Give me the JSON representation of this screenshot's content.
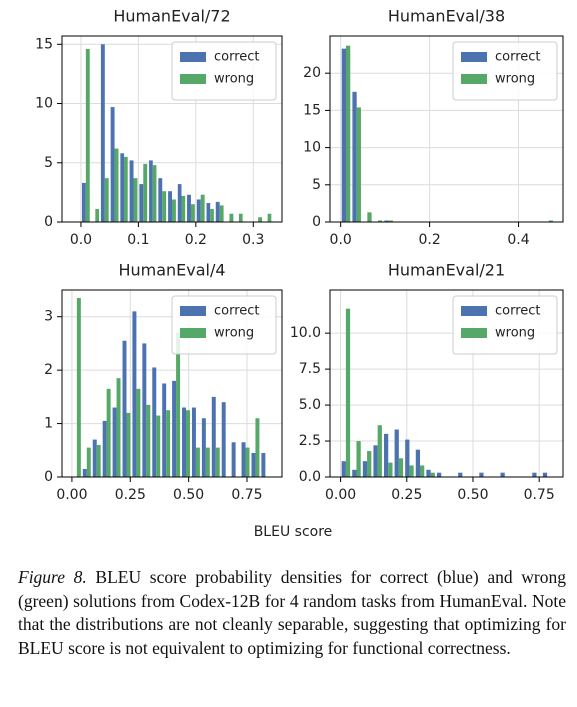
{
  "chart_data": [
    {
      "type": "histogram",
      "title": "HumanEval/72",
      "bins": [
        0,
        0.017,
        0.033,
        0.05,
        0.067,
        0.083,
        0.1,
        0.117,
        0.133,
        0.15,
        0.167,
        0.183,
        0.2,
        0.217,
        0.233,
        0.25,
        0.267,
        0.283,
        0.3,
        0.317,
        0.333
      ],
      "series": [
        {
          "name": "correct",
          "color": "#4c72b0",
          "values": [
            3.3,
            0,
            15,
            9.7,
            5.8,
            5.2,
            3.2,
            5.2,
            3.7,
            2.6,
            3.2,
            2.3,
            1.9,
            1.6,
            1.7,
            0,
            0,
            0,
            0,
            0
          ]
        },
        {
          "name": "wrong",
          "color": "#55a868",
          "values": [
            14.6,
            1.1,
            3.7,
            6.2,
            5.5,
            3.7,
            4.9,
            4.8,
            2.6,
            1.9,
            2.2,
            1.5,
            2.3,
            1.1,
            1.4,
            0.7,
            0.7,
            0,
            0.4,
            0.7
          ]
        }
      ],
      "xlim": [
        -0.033,
        0.35
      ],
      "xticks": [
        {
          "value": 0,
          "label": "0.0"
        },
        0.1,
        0.2,
        0.3
      ],
      "ylim": [
        0,
        15.7
      ],
      "yticks": [
        0,
        5,
        10,
        15
      ],
      "grid": true,
      "legend": "upper right"
    },
    {
      "type": "histogram",
      "title": "HumanEval/38",
      "bins": [
        0,
        0.024,
        0.048,
        0.072,
        0.096,
        0.12,
        0.144,
        0.168,
        0.192,
        0.216,
        0.24,
        0.264,
        0.288,
        0.312,
        0.336,
        0.36,
        0.384,
        0.408,
        0.432,
        0.456,
        0.48
      ],
      "series": [
        {
          "name": "correct",
          "color": "#4c72b0",
          "values": [
            23.3,
            17.5,
            0,
            0,
            0.2,
            0,
            0,
            0,
            0,
            0,
            0,
            0,
            0,
            0,
            0,
            0,
            0,
            0,
            0,
            0
          ]
        },
        {
          "name": "wrong",
          "color": "#55a868",
          "values": [
            23.7,
            15.4,
            1.3,
            0.2,
            0.2,
            0,
            0,
            0,
            0,
            0,
            0,
            0,
            0,
            0,
            0,
            0,
            0,
            0,
            0,
            0.2
          ]
        }
      ],
      "xlim": [
        -0.024,
        0.5
      ],
      "xticks": [
        {
          "value": 0,
          "label": "0.0"
        },
        0.2,
        0.4
      ],
      "ylim": [
        0,
        25
      ],
      "yticks": [
        0,
        5,
        10,
        15,
        20
      ],
      "grid": true,
      "legend": "upper right"
    },
    {
      "type": "histogram",
      "title": "HumanEval/4",
      "bins": [
        0,
        0.0425,
        0.085,
        0.1275,
        0.17,
        0.2125,
        0.255,
        0.2975,
        0.34,
        0.3825,
        0.425,
        0.4675,
        0.51,
        0.5525,
        0.595,
        0.6375,
        0.68,
        0.7225,
        0.765,
        0.8075,
        0.85
      ],
      "series": [
        {
          "name": "correct",
          "color": "#4c72b0",
          "values": [
            0,
            0.15,
            0.7,
            1.05,
            1.3,
            2.55,
            3.1,
            2.5,
            2.05,
            1.75,
            1.8,
            1.3,
            1.3,
            1.1,
            1.5,
            1.4,
            0.65,
            0.65,
            0.45,
            0.45
          ]
        },
        {
          "name": "wrong",
          "color": "#55a868",
          "values": [
            3.35,
            0.55,
            0.6,
            1.65,
            1.85,
            1.2,
            1.65,
            1.35,
            1.15,
            1.25,
            2.7,
            1.25,
            0.55,
            0.55,
            0.55,
            0,
            0,
            0.55,
            1.1,
            0
          ]
        }
      ],
      "xlim": [
        -0.0425,
        0.9
      ],
      "xticks": [
        {
          "value": 0,
          "label": "0.00"
        },
        0.25,
        {
          "value": 0.5,
          "label": "0.50"
        },
        0.75
      ],
      "ylim": [
        0,
        3.5
      ],
      "yticks": [
        0,
        1,
        2,
        3
      ],
      "grid": true,
      "legend": "upper right"
    },
    {
      "type": "histogram",
      "title": "HumanEval/21",
      "bins": [
        0,
        0.04,
        0.08,
        0.12,
        0.16,
        0.2,
        0.24,
        0.28,
        0.32,
        0.36,
        0.4,
        0.44,
        0.48,
        0.52,
        0.56,
        0.6,
        0.64,
        0.68,
        0.72,
        0.76,
        0.8
      ],
      "series": [
        {
          "name": "correct",
          "color": "#4c72b0",
          "values": [
            1.1,
            0.5,
            1.1,
            2.2,
            3.0,
            3.3,
            2.6,
            1.9,
            0.5,
            0.3,
            0,
            0.3,
            0,
            0.3,
            0,
            0.3,
            0,
            0,
            0.3,
            0.3
          ]
        },
        {
          "name": "wrong",
          "color": "#55a868",
          "values": [
            11.7,
            2.5,
            1.8,
            3.6,
            1.0,
            1.3,
            0.8,
            0.8,
            0.3,
            0,
            0,
            0,
            0,
            0,
            0,
            0,
            0,
            0,
            0,
            0
          ]
        }
      ],
      "xlim": [
        -0.04,
        0.84
      ],
      "xticks": [
        {
          "value": 0,
          "label": "0.00"
        },
        0.25,
        {
          "value": 0.5,
          "label": "0.50"
        },
        0.75
      ],
      "ylim": [
        0,
        13
      ],
      "yticks": [
        {
          "value": 0,
          "label": "0.0"
        },
        2.5,
        {
          "value": 5,
          "label": "5.0"
        },
        7.5,
        {
          "value": 10,
          "label": "10.0"
        }
      ],
      "grid": true,
      "legend": "upper right"
    }
  ],
  "xlabel": "BLEU score",
  "caption": {
    "label": "Figure 8.",
    "text": "BLEU score probability densities for correct (blue) and wrong (green) solutions from Codex-12B for 4 random tasks from HumanEval. Note that the distributions are not cleanly separable, suggesting that optimizing for BLEU score is not equivalent to optimizing for functional correctness."
  }
}
